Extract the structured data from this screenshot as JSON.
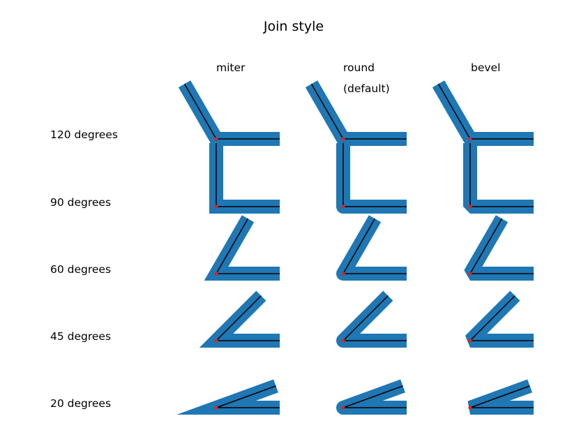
{
  "title": "Join style",
  "columns": [
    {
      "label": "miter",
      "sub": "",
      "join": "miter"
    },
    {
      "label": "round",
      "sub": "(default)",
      "join": "round"
    },
    {
      "label": "bevel",
      "sub": "",
      "join": "bevel"
    }
  ],
  "rows": [
    {
      "label": "120 degrees",
      "angle": 120
    },
    {
      "label": "90 degrees",
      "angle": 90
    },
    {
      "label": "60 degrees",
      "angle": 60
    },
    {
      "label": "45 degrees",
      "angle": 45
    },
    {
      "label": "20 degrees",
      "angle": 20
    }
  ],
  "colors": {
    "thick_line": "#1f77b4",
    "thin_line": "#000000",
    "vertex_dot": "#d62728"
  }
}
